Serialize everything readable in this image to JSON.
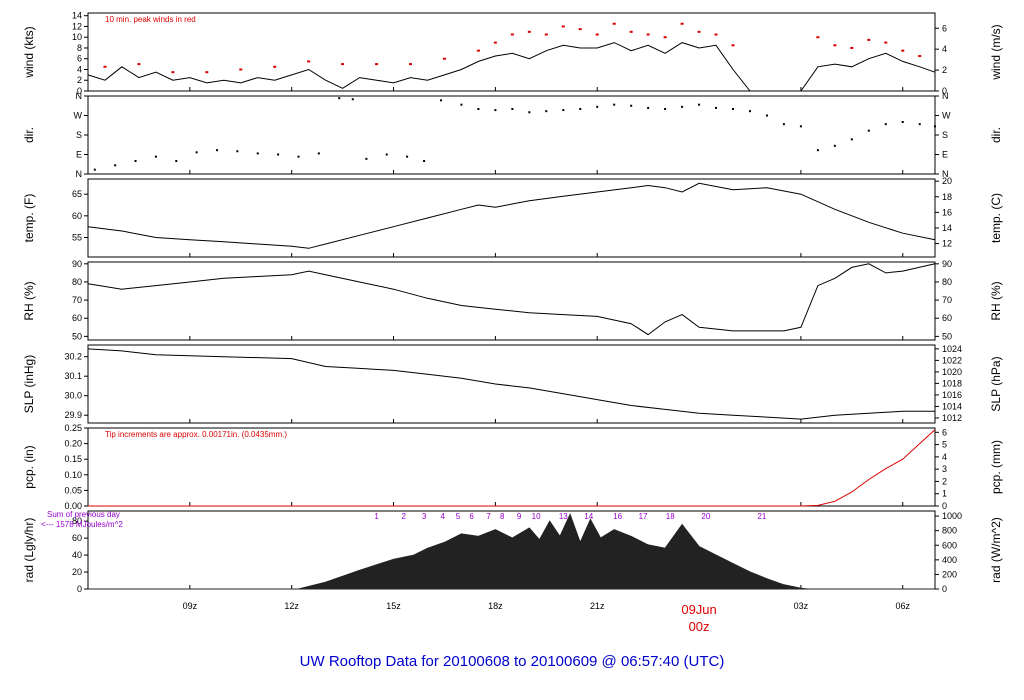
{
  "title": "UW Rooftop Data for 20100608  to  20100609 @ 06:57:40  (UTC)",
  "colors": {
    "frame": "#000000",
    "red": "#dd0000",
    "purple": "#9900cc",
    "blue": "#0000cc"
  },
  "chart_data": {
    "type": "line",
    "x_axis": {
      "unit": "hours UTC since 20100608 00z",
      "range": [
        6.0,
        30.95
      ],
      "ticks": [
        {
          "x": 9,
          "label": "09z"
        },
        {
          "x": 12,
          "label": "12z"
        },
        {
          "x": 15,
          "label": "15z"
        },
        {
          "x": 18,
          "label": "18z"
        },
        {
          "x": 21,
          "label": "21z"
        },
        {
          "x": 27,
          "label": "03z"
        },
        {
          "x": 30,
          "label": "06z"
        }
      ],
      "day_marker": {
        "x": 24,
        "date_label": "09Jun",
        "hour_label": "00z"
      }
    },
    "panels": [
      {
        "id": "wind",
        "left_label": "wind (kts)",
        "right_label": "wind (m/s)",
        "left_range": [
          0,
          14.5
        ],
        "left_ticks": [
          0,
          2,
          4,
          6,
          8,
          10,
          12,
          14
        ],
        "right_ticks": [
          {
            "v": 0,
            "label": "0"
          },
          {
            "v": 3.888,
            "label": "2"
          },
          {
            "v": 7.776,
            "label": "4"
          },
          {
            "v": 11.664,
            "label": "6"
          }
        ],
        "annotation": "10 min. peak winds in red",
        "series": [
          {
            "name": "wind",
            "color": "#000000",
            "x": [
              6.0,
              6.5,
              7.0,
              7.5,
              8.0,
              8.5,
              9.0,
              9.5,
              10.0,
              10.5,
              11.0,
              11.5,
              12.0,
              12.5,
              13.0,
              13.5,
              14.0,
              14.5,
              15.0,
              15.5,
              16.0,
              16.5,
              17.0,
              17.5,
              18.0,
              18.5,
              19.0,
              19.5,
              20.0,
              20.5,
              21.0,
              21.5,
              22.0,
              22.5,
              23.0,
              23.5,
              24.0,
              24.5,
              25.0,
              25.5,
              26.0,
              26.5,
              27.0,
              27.5,
              28.0,
              28.5,
              29.0,
              29.5,
              30.0,
              30.5,
              30.95
            ],
            "y": [
              3.0,
              2.0,
              4.5,
              2.5,
              3.5,
              2.0,
              2.5,
              1.5,
              2.0,
              1.5,
              2.5,
              2.0,
              3.0,
              4.0,
              2.0,
              0.5,
              2.5,
              2.0,
              1.5,
              2.5,
              2.0,
              3.0,
              4.0,
              5.5,
              6.5,
              7.0,
              6.0,
              7.5,
              8.5,
              8.0,
              8.0,
              9.0,
              7.5,
              8.5,
              7.0,
              9.0,
              8.0,
              8.5,
              4.0,
              0.0,
              0.0,
              0.0,
              0.0,
              4.5,
              5.0,
              4.5,
              6.0,
              7.0,
              5.5,
              4.5,
              3.5
            ]
          },
          {
            "name": "10 min. peak winds",
            "color": "#dd0000",
            "x": [
              6.5,
              7.5,
              8.5,
              9.5,
              10.5,
              11.5,
              12.5,
              13.5,
              14.5,
              15.5,
              16.5,
              17.5,
              18.0,
              18.5,
              19.0,
              19.5,
              20.0,
              20.5,
              21.0,
              21.5,
              22.0,
              22.5,
              23.0,
              23.5,
              24.0,
              24.5,
              25.0,
              27.5,
              28.0,
              28.5,
              29.0,
              29.5,
              30.0,
              30.5
            ],
            "y": [
              4.5,
              5.0,
              3.5,
              3.5,
              4.0,
              4.5,
              5.5,
              5.0,
              5.0,
              5.0,
              6.0,
              7.5,
              9.0,
              10.5,
              11.0,
              10.5,
              12.0,
              11.5,
              10.5,
              12.5,
              11.0,
              10.5,
              10.0,
              12.5,
              11.0,
              10.5,
              8.5,
              10.0,
              8.5,
              8.0,
              9.5,
              9.0,
              7.5,
              6.5
            ]
          }
        ]
      },
      {
        "id": "dir",
        "left_label": "dir.",
        "right_label": "dir.",
        "left_range": [
          0,
          360
        ],
        "left_ticks": [
          {
            "v": 0,
            "label": "N"
          },
          {
            "v": 90,
            "label": "E"
          },
          {
            "v": 180,
            "label": "S"
          },
          {
            "v": 270,
            "label": "W"
          },
          {
            "v": 360,
            "label": "N"
          }
        ],
        "right_ticks": [
          {
            "v": 0,
            "label": "N"
          },
          {
            "v": 90,
            "label": "E"
          },
          {
            "v": 180,
            "label": "S"
          },
          {
            "v": 270,
            "label": "W"
          },
          {
            "v": 360,
            "label": "N"
          }
        ],
        "series": [
          {
            "name": "direction",
            "color": "#000000",
            "mode": "dots",
            "x": [
              6.2,
              6.8,
              7.4,
              8.0,
              8.6,
              9.2,
              9.8,
              10.4,
              11.0,
              11.6,
              12.2,
              12.8,
              13.4,
              13.8,
              14.2,
              14.8,
              15.4,
              15.9,
              16.4,
              17.0,
              17.5,
              18.0,
              18.5,
              19.0,
              19.5,
              20.0,
              20.5,
              21.0,
              21.5,
              22.0,
              22.5,
              23.0,
              23.5,
              24.0,
              24.5,
              25.0,
              25.5,
              26.0,
              26.5,
              27.0,
              27.5,
              28.0,
              28.5,
              29.0,
              29.5,
              30.0,
              30.5,
              30.95
            ],
            "y": [
              20,
              40,
              60,
              80,
              60,
              100,
              110,
              105,
              95,
              90,
              80,
              95,
              350,
              345,
              70,
              90,
              80,
              60,
              340,
              320,
              300,
              295,
              300,
              285,
              290,
              295,
              300,
              310,
              320,
              315,
              305,
              300,
              310,
              320,
              305,
              300,
              290,
              270,
              230,
              220,
              110,
              130,
              160,
              200,
              230,
              240,
              230,
              220
            ]
          }
        ]
      },
      {
        "id": "temp",
        "left_label": "temp. (F)",
        "right_label": "temp. (C)",
        "left_range": [
          50.5,
          68.5
        ],
        "left_ticks": [
          55,
          60,
          65
        ],
        "right_ticks": [
          {
            "v": 53.6,
            "label": "12"
          },
          {
            "v": 57.2,
            "label": "14"
          },
          {
            "v": 60.8,
            "label": "16"
          },
          {
            "v": 64.4,
            "label": "18"
          },
          {
            "v": 68.0,
            "label": "20"
          }
        ],
        "series": [
          {
            "name": "temperature",
            "color": "#000000",
            "x": [
              6.0,
              7.0,
              8.0,
              9.0,
              10.0,
              11.0,
              12.0,
              12.5,
              13.0,
              14.0,
              15.0,
              16.0,
              17.0,
              17.5,
              18.0,
              19.0,
              20.0,
              21.0,
              22.0,
              22.5,
              23.0,
              23.5,
              24.0,
              25.0,
              26.0,
              27.0,
              28.0,
              29.0,
              30.0,
              30.95
            ],
            "y": [
              57.5,
              56.5,
              55.0,
              54.5,
              54.0,
              53.5,
              53.0,
              52.5,
              53.5,
              55.5,
              57.5,
              59.5,
              61.5,
              62.5,
              62.0,
              63.5,
              64.5,
              65.5,
              66.5,
              67.0,
              66.5,
              65.5,
              67.5,
              66.0,
              66.5,
              65.0,
              61.5,
              58.5,
              56.0,
              54.5
            ]
          }
        ]
      },
      {
        "id": "rh",
        "left_label": "RH (%)",
        "right_label": "RH (%)",
        "left_range": [
          48,
          91
        ],
        "left_ticks": [
          50,
          60,
          70,
          80,
          90
        ],
        "right_ticks": [
          {
            "v": 50,
            "label": "50"
          },
          {
            "v": 60,
            "label": "60"
          },
          {
            "v": 70,
            "label": "70"
          },
          {
            "v": 80,
            "label": "80"
          },
          {
            "v": 90,
            "label": "90"
          }
        ],
        "series": [
          {
            "name": "relative humidity",
            "color": "#000000",
            "x": [
              6.0,
              7.0,
              8.0,
              9.0,
              10.0,
              11.0,
              12.0,
              12.5,
              13.0,
              14.0,
              15.0,
              16.0,
              17.0,
              18.0,
              19.0,
              20.0,
              21.0,
              22.0,
              22.5,
              23.0,
              23.5,
              24.0,
              25.0,
              26.0,
              26.5,
              27.0,
              27.5,
              28.0,
              28.5,
              29.0,
              29.5,
              30.0,
              30.95
            ],
            "y": [
              79,
              76,
              78,
              80,
              82,
              83,
              84,
              86,
              84,
              80,
              76,
              71,
              67,
              65,
              63,
              62,
              61,
              57,
              51,
              58,
              62,
              55,
              53,
              53,
              53,
              55,
              78,
              82,
              88,
              90,
              85,
              86,
              90
            ]
          }
        ]
      },
      {
        "id": "slp",
        "left_label": "SLP (inHg)",
        "right_label": "SLP (hPa)",
        "left_range": [
          29.86,
          30.26
        ],
        "left_ticks": [
          29.9,
          30.0,
          30.1,
          30.2
        ],
        "right_ticks": [
          {
            "v": 29.8859,
            "label": "1012"
          },
          {
            "v": 29.945,
            "label": "1014"
          },
          {
            "v": 30.004,
            "label": "1016"
          },
          {
            "v": 30.0631,
            "label": "1018"
          },
          {
            "v": 30.1221,
            "label": "1020"
          },
          {
            "v": 30.1812,
            "label": "1022"
          },
          {
            "v": 30.2403,
            "label": "1024"
          }
        ],
        "series": [
          {
            "name": "sea level pressure",
            "color": "#000000",
            "x": [
              6.0,
              7.0,
              8.0,
              10.0,
              12.0,
              13.0,
              14.0,
              15.0,
              16.0,
              17.0,
              18.0,
              19.0,
              20.0,
              21.0,
              22.0,
              23.0,
              24.0,
              25.0,
              26.0,
              27.0,
              28.0,
              29.0,
              30.0,
              30.95
            ],
            "y": [
              30.24,
              30.23,
              30.21,
              30.2,
              30.19,
              30.15,
              30.14,
              30.13,
              30.11,
              30.09,
              30.06,
              30.04,
              30.01,
              29.98,
              29.95,
              29.93,
              29.91,
              29.9,
              29.89,
              29.88,
              29.9,
              29.91,
              29.92,
              29.92
            ]
          }
        ]
      },
      {
        "id": "pcp",
        "left_label": "pcp. (in)",
        "right_label": "pcp. (mm)",
        "left_range": [
          0,
          0.25
        ],
        "left_ticks": [
          0.0,
          0.05,
          0.1,
          0.15,
          0.2,
          0.25
        ],
        "right_ticks": [
          {
            "v": 0,
            "label": "0"
          },
          {
            "v": 0.03937,
            "label": "1"
          },
          {
            "v": 0.07874,
            "label": "2"
          },
          {
            "v": 0.11811,
            "label": "3"
          },
          {
            "v": 0.15748,
            "label": "4"
          },
          {
            "v": 0.19685,
            "label": "5"
          },
          {
            "v": 0.23622,
            "label": "6"
          }
        ],
        "annotation": "Tip increments are approx. 0.00171in. (0.0435mm.)",
        "series": [
          {
            "name": "precipitation",
            "color": "#dd0000",
            "x": [
              6.0,
              27.0,
              27.5,
              28.0,
              28.5,
              29.0,
              29.5,
              30.0,
              30.5,
              30.95
            ],
            "y": [
              0.0,
              0.0,
              0.002,
              0.015,
              0.045,
              0.085,
              0.12,
              0.15,
              0.2,
              0.245
            ]
          }
        ]
      },
      {
        "id": "rad",
        "left_label": "rad (Lgly/hr)",
        "right_label": "rad (W/m^2)",
        "left_range": [
          0,
          92
        ],
        "left_ticks": [
          0,
          20,
          40,
          60,
          80
        ],
        "right_ticks": [
          {
            "v": 0,
            "label": "0"
          },
          {
            "v": 17.2,
            "label": "200"
          },
          {
            "v": 34.4,
            "label": "400"
          },
          {
            "v": 51.6,
            "label": "600"
          },
          {
            "v": 68.8,
            "label": "800"
          },
          {
            "v": 86.0,
            "label": "1000"
          }
        ],
        "annotation_lines": [
          "Sum of previous day",
          "<--- 1578 MJoules/m^2"
        ],
        "hour_labels": [
          {
            "x": 14.5,
            "label": "1"
          },
          {
            "x": 15.3,
            "label": "2"
          },
          {
            "x": 15.9,
            "label": "3"
          },
          {
            "x": 16.45,
            "label": "4"
          },
          {
            "x": 16.9,
            "label": "5"
          },
          {
            "x": 17.3,
            "label": "6"
          },
          {
            "x": 17.8,
            "label": "7"
          },
          {
            "x": 18.2,
            "label": "8"
          },
          {
            "x": 18.7,
            "label": "9"
          },
          {
            "x": 19.2,
            "label": "10"
          },
          {
            "x": 20.0,
            "label": "13"
          },
          {
            "x": 20.75,
            "label": "14"
          },
          {
            "x": 21.6,
            "label": "16"
          },
          {
            "x": 22.35,
            "label": "17"
          },
          {
            "x": 23.15,
            "label": "18"
          },
          {
            "x": 24.2,
            "label": "20"
          },
          {
            "x": 25.85,
            "label": "21"
          }
        ],
        "series": [
          {
            "name": "solar radiation",
            "color": "#222222",
            "mode": "area",
            "x": [
              6.0,
              12.2,
              13.0,
              14.0,
              15.0,
              15.6,
              16.0,
              16.5,
              17.0,
              17.5,
              18.0,
              18.5,
              19.0,
              19.3,
              19.6,
              19.9,
              20.2,
              20.5,
              20.8,
              21.1,
              21.5,
              22.0,
              22.5,
              23.0,
              23.5,
              24.0,
              24.5,
              25.0,
              25.5,
              26.0,
              26.5,
              27.0,
              27.2,
              30.95
            ],
            "y": [
              0,
              0,
              8,
              22,
              35,
              40,
              48,
              55,
              65,
              62,
              70,
              60,
              72,
              58,
              80,
              62,
              88,
              55,
              82,
              60,
              70,
              62,
              52,
              48,
              76,
              50,
              40,
              30,
              20,
              12,
              5,
              1,
              0,
              0
            ]
          }
        ]
      }
    ]
  }
}
